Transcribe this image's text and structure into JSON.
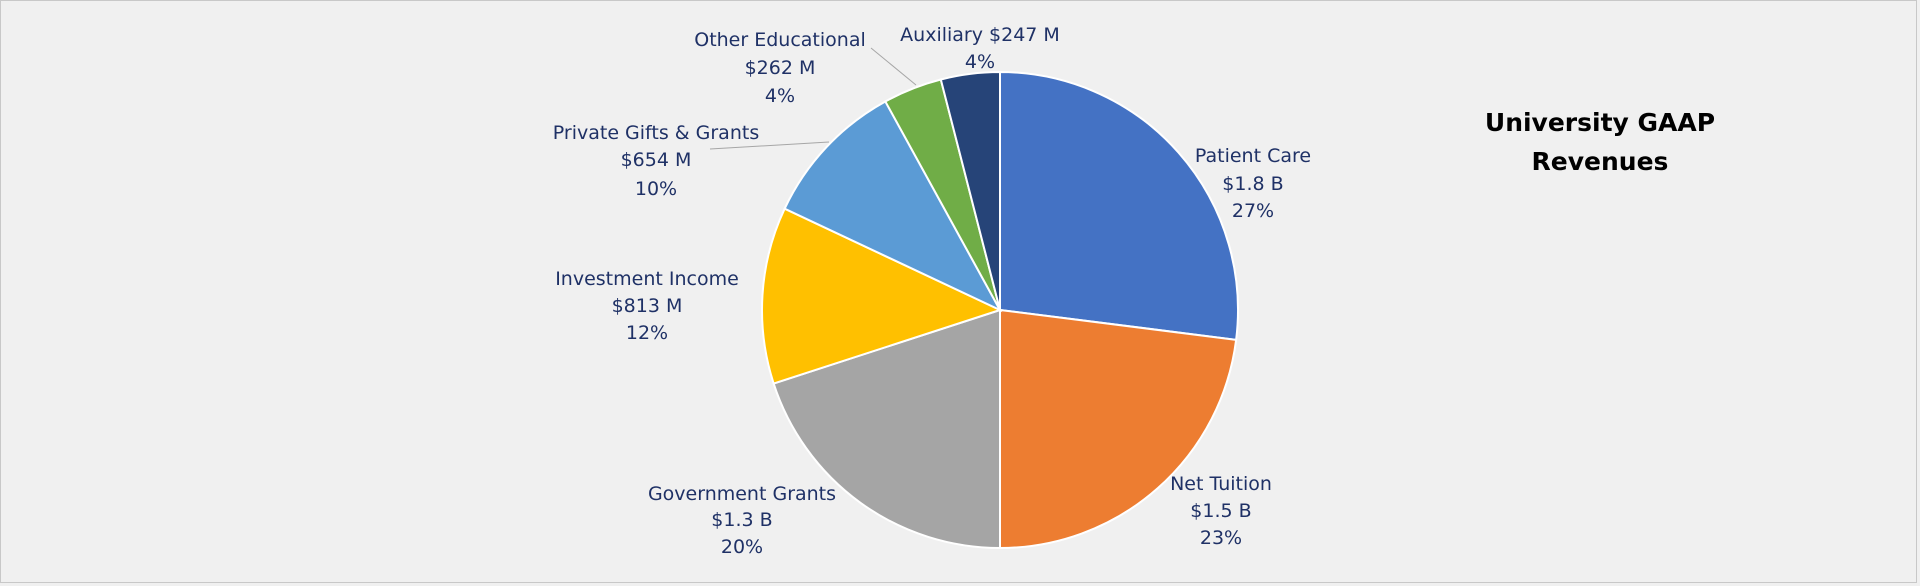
{
  "chart_data": {
    "type": "pie",
    "title": [
      "University GAAP",
      "Revenues"
    ],
    "start_angle_deg": 0,
    "direction": "clockwise",
    "slices": [
      {
        "name": "Patient Care",
        "amount": "$1.8 B",
        "percent": 27,
        "color": "#4472c4"
      },
      {
        "name": "Net Tuition",
        "amount": "$1.5 B",
        "percent": 23,
        "color": "#ed7d31"
      },
      {
        "name": "Government Grants",
        "amount": "$1.3 B",
        "percent": 20,
        "color": "#a5a5a5"
      },
      {
        "name": "Investment Income",
        "amount": "$813 M",
        "percent": 12,
        "color": "#ffc000"
      },
      {
        "name": "Private Gifts & Grants",
        "amount": "$654 M",
        "percent": 10,
        "color": "#5b9bd5"
      },
      {
        "name": "Other Educational",
        "amount": "$262 M",
        "percent": 4,
        "color": "#70ad47"
      },
      {
        "name": "Auxiliary",
        "amount": "$247 M",
        "percent": 4,
        "color": "#264478"
      }
    ],
    "legend": "none"
  }
}
